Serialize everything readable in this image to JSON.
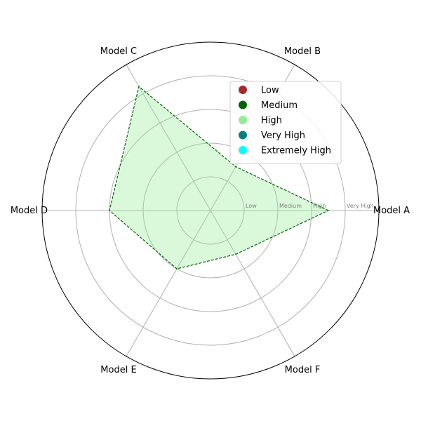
{
  "chart_data": {
    "type": "radar",
    "categories": [
      "Model A",
      "Model B",
      "Model C",
      "Model D",
      "Model E",
      "Model F"
    ],
    "levels": [
      "Low",
      "Medium",
      "High",
      "Very High"
    ],
    "series": [
      {
        "values": [
          3.5,
          1.5,
          4.25,
          3.0,
          2.0,
          1.5
        ]
      }
    ],
    "rlim": [
      0,
      5
    ],
    "rings": [
      1,
      2,
      3,
      4
    ],
    "tick_labels": [
      {
        "text": "Low",
        "value": 1
      },
      {
        "text": "Medium",
        "value": 2
      },
      {
        "text": "High",
        "value": 3
      },
      {
        "text": "Very High",
        "value": 4
      }
    ],
    "legend": {
      "position": "upper-right",
      "entries": [
        {
          "label": "Low",
          "color": "#a52a2a"
        },
        {
          "label": "Medium",
          "color": "#006400"
        },
        {
          "label": "High",
          "color": "#90ee90"
        },
        {
          "label": "Very High",
          "color": "#008080"
        },
        {
          "label": "Extremely High",
          "color": "#00ffff"
        }
      ]
    },
    "colors": {
      "fill": "#90ee90",
      "line": "#006400",
      "grid": "#b0b0b0",
      "frame": "#000000"
    }
  }
}
